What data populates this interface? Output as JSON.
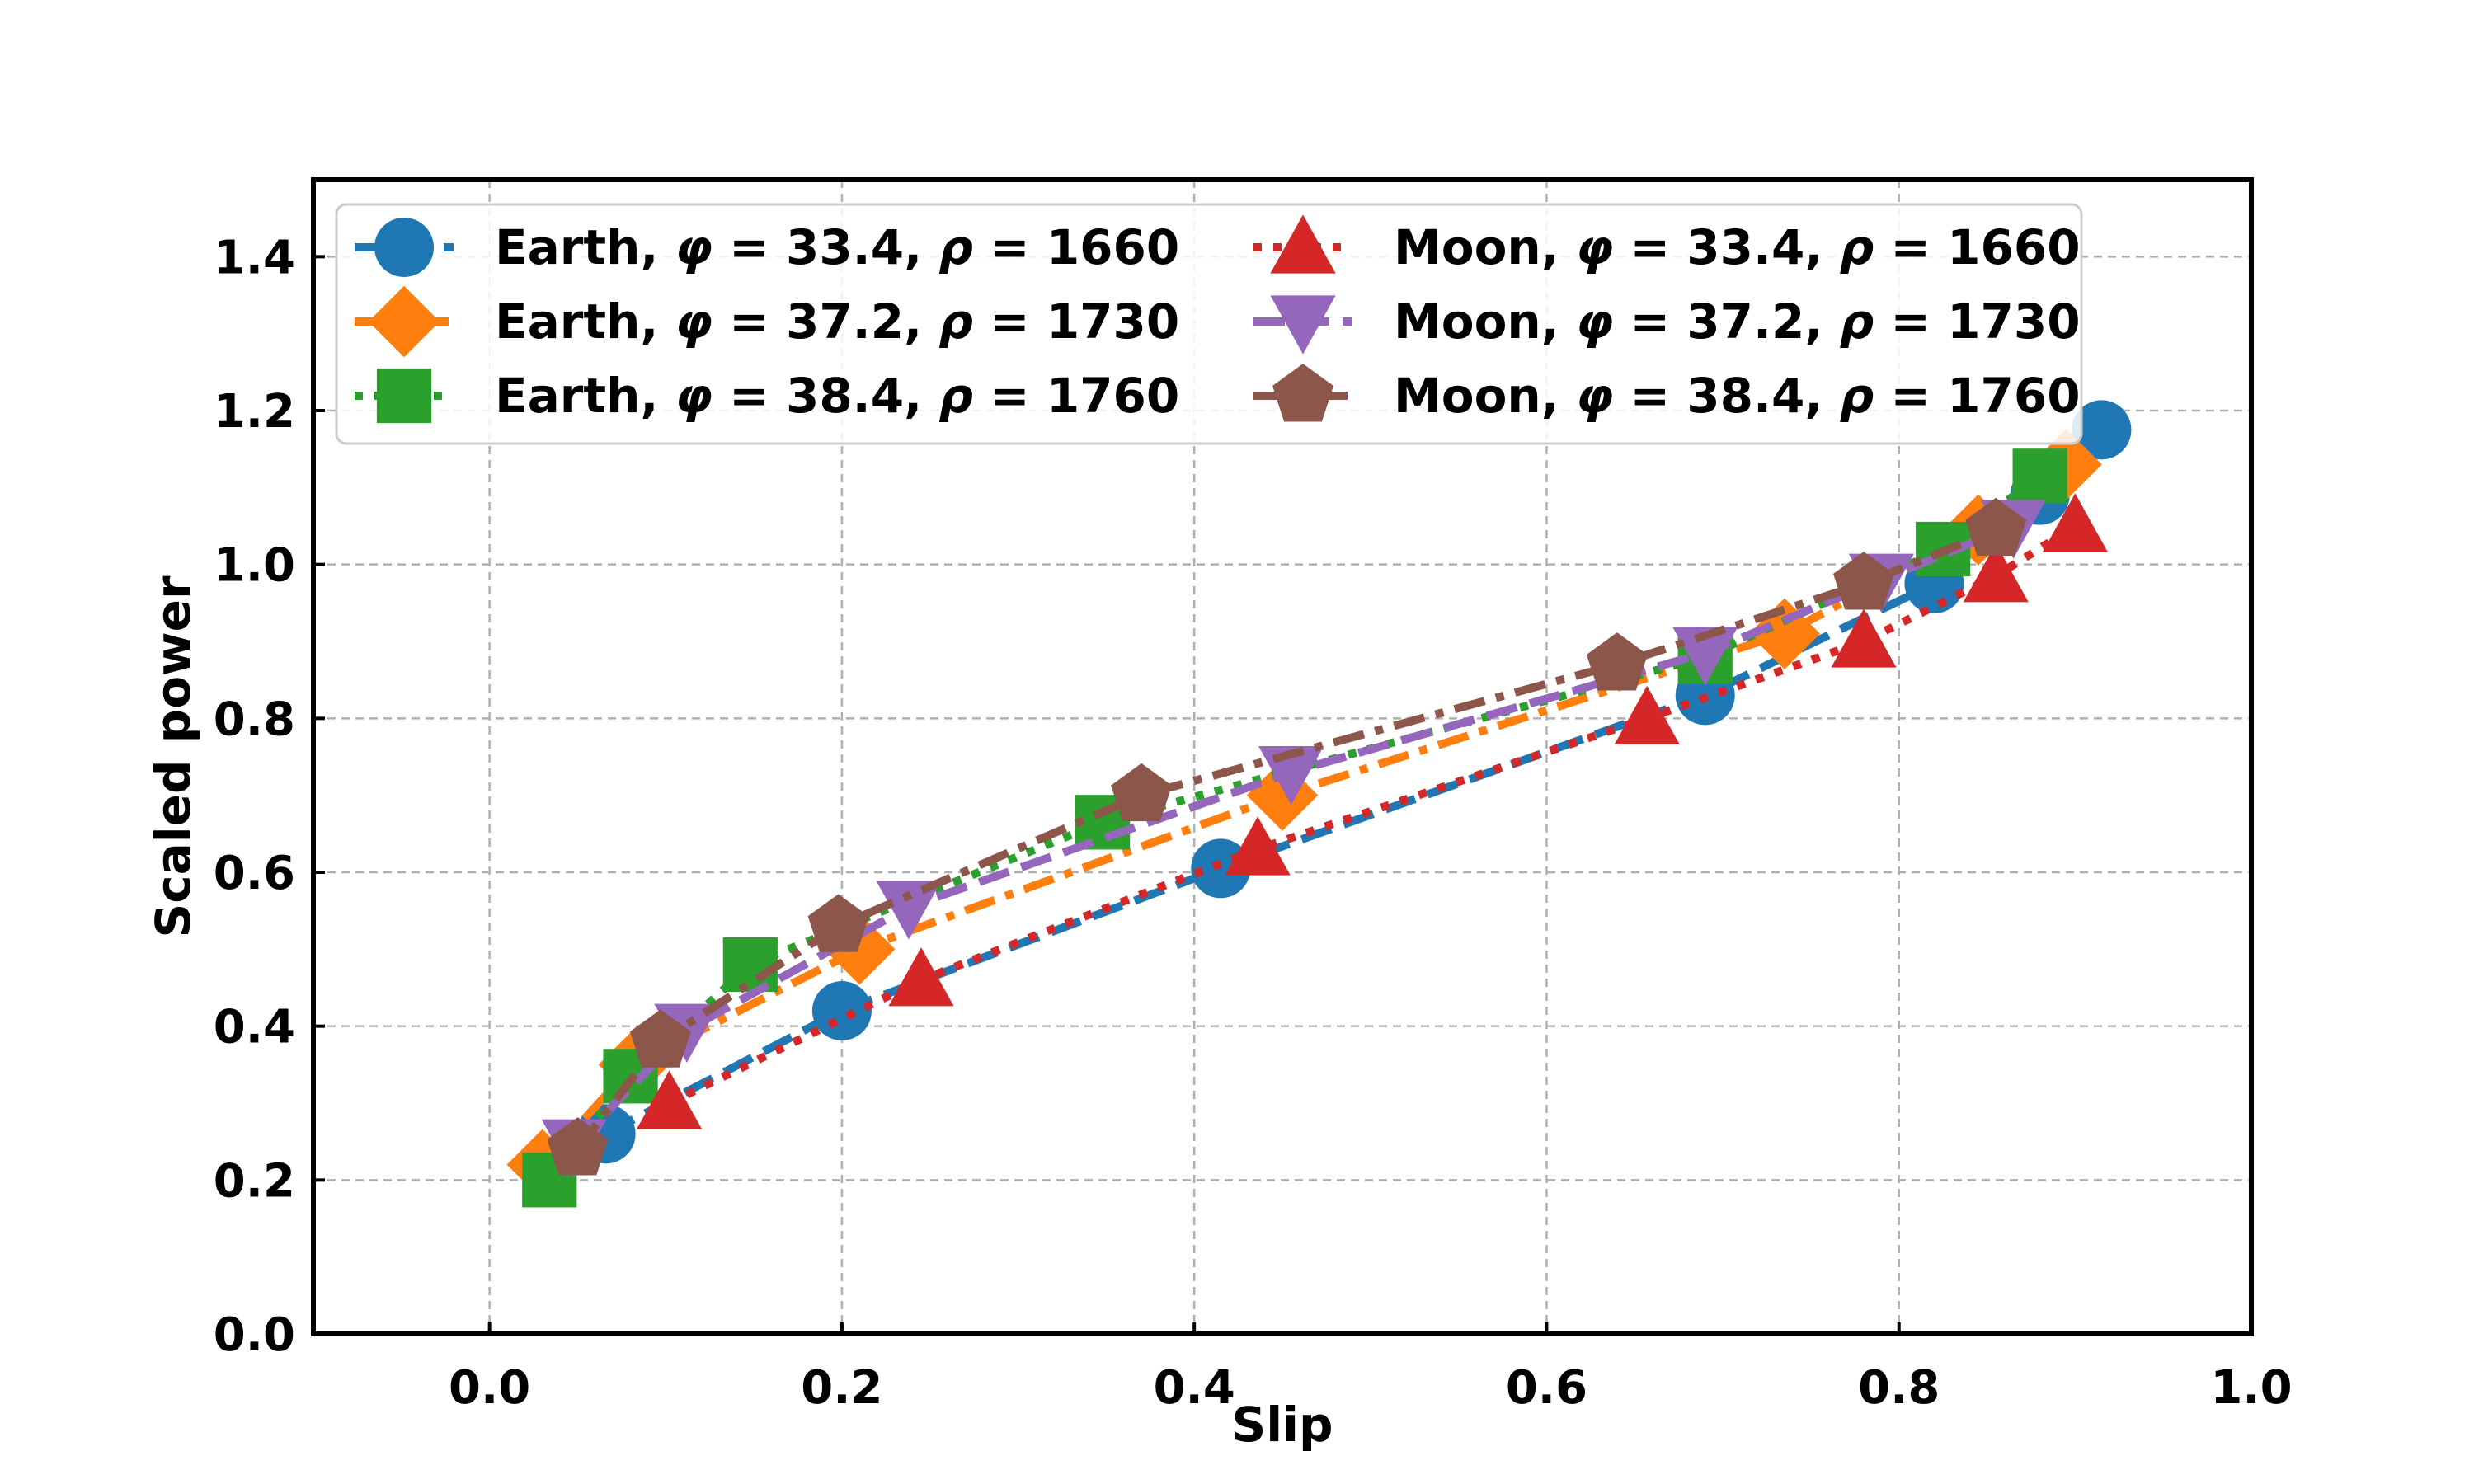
{
  "chart_data": {
    "type": "line",
    "title": "",
    "xlabel": "Slip",
    "ylabel": "Scaled power",
    "xlim": [
      -0.1,
      1.0
    ],
    "ylim": [
      0.0,
      1.5
    ],
    "xticks": [
      "0.0",
      "0.2",
      "0.4",
      "0.6",
      "0.8",
      "1.0"
    ],
    "yticks": [
      "0.0",
      "0.2",
      "0.4",
      "0.6",
      "0.8",
      "1.0",
      "1.2",
      "1.4"
    ],
    "grid": true,
    "legend_position": "top-left",
    "series": [
      {
        "name": "Earth, φ = 33.4, ρ = 1660",
        "prefix": "Earth, ",
        "phi": "33.4",
        "rho": "1660",
        "color": "#1f77b4",
        "marker": "circle",
        "linestyle": "dashed",
        "x": [
          0.066,
          0.2,
          0.415,
          0.69,
          0.82,
          0.88,
          0.915
        ],
        "y": [
          0.26,
          0.42,
          0.605,
          0.83,
          0.975,
          1.09,
          1.175
        ]
      },
      {
        "name": "Earth, φ = 37.2, ρ = 1730",
        "prefix": "Earth, ",
        "phi": "37.2",
        "rho": "1730",
        "color": "#ff7f0e",
        "marker": "diamond",
        "linestyle": "dashdot",
        "x": [
          0.03,
          0.082,
          0.21,
          0.45,
          0.735,
          0.845,
          0.895
        ],
        "y": [
          0.22,
          0.35,
          0.5,
          0.7,
          0.91,
          1.045,
          1.13
        ]
      },
      {
        "name": "Earth, φ = 38.4, ρ = 1760",
        "prefix": "Earth, ",
        "phi": "38.4",
        "rho": "1760",
        "color": "#2ca02c",
        "marker": "square",
        "linestyle": "dotted",
        "x": [
          0.034,
          0.08,
          0.148,
          0.348,
          0.69,
          0.825,
          0.88
        ],
        "y": [
          0.2,
          0.335,
          0.48,
          0.665,
          0.88,
          1.02,
          1.115
        ]
      },
      {
        "name": "Moon, φ = 33.4, ρ = 1660",
        "prefix": "Moon, ",
        "phi": "33.4",
        "rho": "1660",
        "color": "#d62728",
        "marker": "triangle-up",
        "linestyle": "dotted",
        "x": [
          0.102,
          0.245,
          0.436,
          0.657,
          0.78,
          0.855,
          0.9
        ],
        "y": [
          0.3,
          0.46,
          0.63,
          0.8,
          0.9,
          0.985,
          1.05
        ]
      },
      {
        "name": "Moon, φ = 37.2, ρ = 1730",
        "prefix": "Moon, ",
        "phi": "37.2",
        "rho": "1730",
        "color": "#9467bd",
        "marker": "triangle-down",
        "linestyle": "dashed",
        "x": [
          0.048,
          0.112,
          0.238,
          0.455,
          0.69,
          0.79,
          0.865
        ],
        "y": [
          0.245,
          0.395,
          0.555,
          0.73,
          0.885,
          0.98,
          1.05
        ]
      },
      {
        "name": "Moon, φ = 38.4, ρ = 1760",
        "prefix": "Moon, ",
        "phi": "38.4",
        "rho": "1760",
        "color": "#8c564b",
        "marker": "pentagon",
        "linestyle": "dashdot",
        "x": [
          0.05,
          0.097,
          0.198,
          0.37,
          0.64,
          0.78,
          0.855
        ],
        "y": [
          0.24,
          0.38,
          0.53,
          0.7,
          0.87,
          0.975,
          1.045
        ]
      }
    ]
  }
}
